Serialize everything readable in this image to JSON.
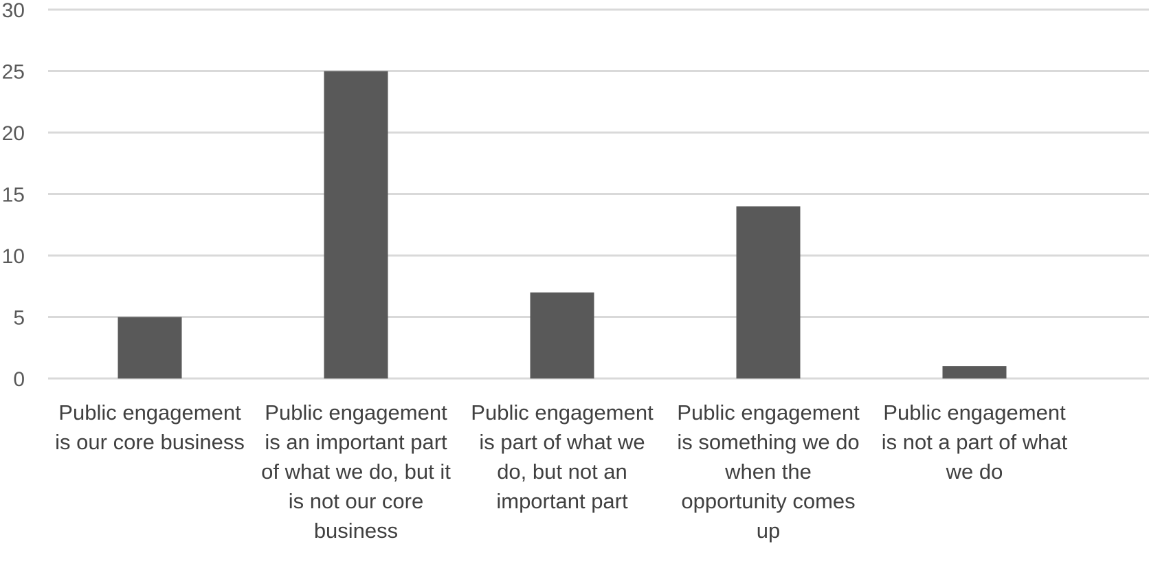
{
  "chart_data": {
    "type": "bar",
    "categories": [
      "Public engagement is our core business",
      "Public engagement is an important part of what we do, but it is not our core business",
      "Public engagement is part of what we do, but not an important part",
      "Public engagement is something we do when the opportunity comes up",
      "Public engagement is not a part of what we do"
    ],
    "category_lines": [
      [
        "Public engagement",
        "is our core business"
      ],
      [
        "Public engagement",
        "is an important part",
        "of what we do, but it",
        "is not our core",
        "business"
      ],
      [
        "Public engagement",
        "is part of what we",
        "do, but not an",
        "important part"
      ],
      [
        "Public engagement",
        "is something we do",
        "when the",
        "opportunity comes",
        "up"
      ],
      [
        "Public engagement",
        "is not a part of what",
        "we do"
      ]
    ],
    "values": [
      5,
      25,
      7,
      14,
      1
    ],
    "ylim": [
      0,
      30
    ],
    "yticks": [
      0,
      5,
      10,
      15,
      20,
      25,
      30
    ],
    "title": "",
    "xlabel": "",
    "ylabel": "",
    "grid": true,
    "legend": "none",
    "bar_color": "#595959",
    "grid_color": "#d9d9d9",
    "text_color": "#595959"
  }
}
